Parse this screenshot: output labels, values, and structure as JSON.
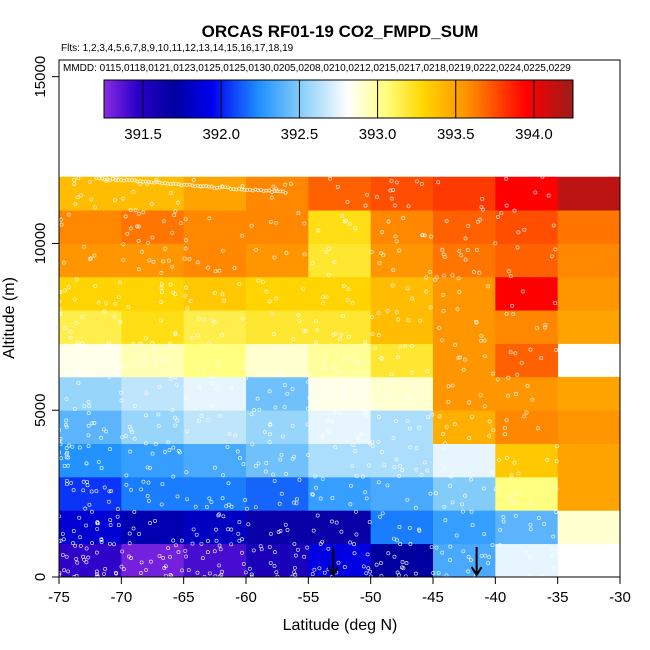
{
  "chart_data": {
    "type": "heatmap",
    "title": "ORCAS RF01-19 CO2_FMPD_SUM",
    "flights_line": "Flts: 1,2,3,4,5,6,7,8,9,10,11,12,13,14,15,16,17,18,19",
    "dates_line": "MMDD: 0115,0118,0121,0123,0125,0125,0130,0205,0208,0210,0212,0215,0217,0218,0219,0222,0224,0225,0229",
    "xlabel": "Latitude (deg N)",
    "ylabel": "Altitude (m)",
    "xlim": [
      -75,
      -30
    ],
    "ylim": [
      0,
      15500
    ],
    "x_ticks": [
      -75,
      -70,
      -65,
      -60,
      -55,
      -50,
      -45,
      -40,
      -35,
      -30
    ],
    "x_tick_labels": [
      "-75",
      "-70",
      "-65",
      "-60",
      "-55",
      "-50",
      "-45",
      "-40",
      "-35",
      "-30"
    ],
    "y_ticks": [
      0,
      5000,
      10000,
      15000
    ],
    "y_tick_labels": [
      "0",
      "5000",
      "10000",
      "15000"
    ],
    "lat_bin_edges": [
      -75,
      -70,
      -65,
      -60,
      -55,
      -50,
      -45,
      -40,
      -35,
      -30
    ],
    "alt_bin_edges": [
      0,
      1000,
      2000,
      3000,
      4000,
      5000,
      6000,
      7000,
      8000,
      9000,
      10000,
      11000,
      12000
    ],
    "colorbar": {
      "min": 391.25,
      "max": 394.25,
      "ticks": [
        391.5,
        392.0,
        392.5,
        393.0,
        393.5,
        394.0
      ],
      "tick_labels": [
        "391.5",
        "392.0",
        "392.5",
        "393.0",
        "393.5",
        "394.0"
      ]
    },
    "values_by_altitude_bin": [
      [
        391.45,
        391.3,
        391.4,
        391.55,
        391.9,
        391.7,
        392.35,
        392.75,
        null
      ],
      [
        391.85,
        391.75,
        391.8,
        391.65,
        391.65,
        392.2,
        392.3,
        392.4,
        392.9
      ],
      [
        392.05,
        392.2,
        392.2,
        392.15,
        392.3,
        392.35,
        392.5,
        393.05,
        393.5
      ],
      [
        392.25,
        392.3,
        392.35,
        392.45,
        392.6,
        392.6,
        392.75,
        393.35,
        393.5
      ],
      [
        392.4,
        392.55,
        392.65,
        392.55,
        392.75,
        392.6,
        393.45,
        393.6,
        393.55
      ],
      [
        392.55,
        392.65,
        392.75,
        392.45,
        392.85,
        392.9,
        393.55,
        393.55,
        393.5
      ],
      [
        392.85,
        392.95,
        393.05,
        392.9,
        393.0,
        393.2,
        393.55,
        393.7,
        null
      ],
      [
        393.15,
        393.25,
        393.15,
        393.2,
        393.2,
        393.4,
        393.55,
        393.6,
        393.5
      ],
      [
        393.3,
        393.3,
        393.35,
        393.3,
        393.3,
        393.4,
        393.55,
        393.95,
        393.55
      ],
      [
        393.55,
        393.55,
        393.6,
        393.55,
        393.2,
        393.55,
        393.65,
        393.7,
        393.6
      ],
      [
        393.6,
        393.65,
        393.6,
        393.6,
        393.25,
        393.6,
        393.7,
        393.75,
        393.65
      ],
      [
        393.4,
        393.4,
        393.5,
        393.6,
        393.7,
        393.75,
        393.8,
        393.95,
        394.15
      ]
    ],
    "markers": [
      {
        "type": "arrow-down",
        "latitude": -53,
        "altitude_top": 900
      },
      {
        "type": "arrow-down",
        "latitude": -41.5,
        "altitude_top": 900
      }
    ]
  }
}
